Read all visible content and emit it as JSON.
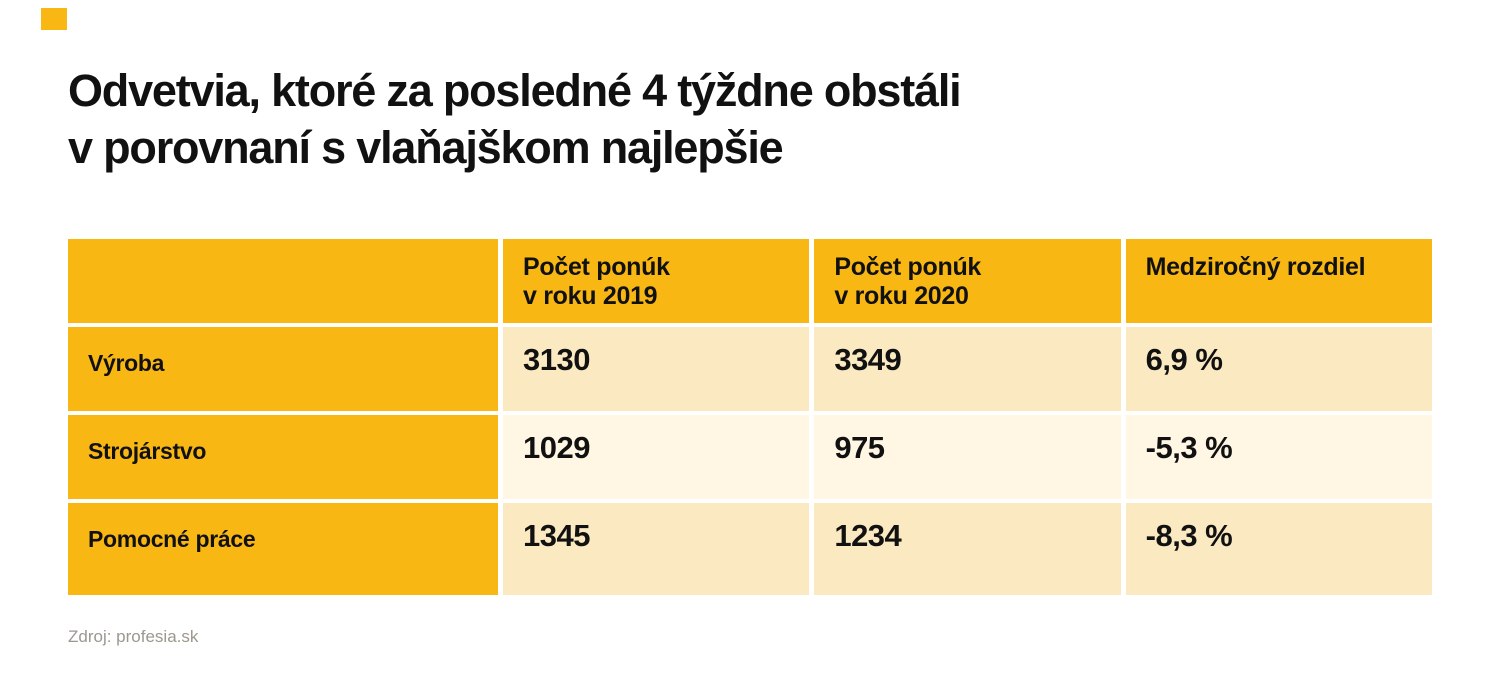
{
  "colors": {
    "yellow": "#F8B713",
    "cream_a": "#FBE9C1",
    "cream_b": "#FFF6E3",
    "ink": "#111111",
    "muted": "#9C978F"
  },
  "title": {
    "line1": "Odvetvia, ktoré za posledné 4 týždne obstáli",
    "line2": "v porovnaní s vlaňajškom najlepšie"
  },
  "table": {
    "headers": [
      {
        "line1": "",
        "line2": ""
      },
      {
        "line1": "Počet ponúk",
        "line2": "v roku 2019"
      },
      {
        "line1": "Počet ponúk",
        "line2": "v roku 2020"
      },
      {
        "line1": "Medziročný rozdiel",
        "line2": ""
      }
    ]
  },
  "chart_data": {
    "type": "table",
    "title": "Odvetvia, ktoré za posledné 4 týždne obstáli v porovnaní s vlaňajškom najlepšie",
    "columns": [
      "",
      "Počet ponúk v roku 2019",
      "Počet ponúk v roku 2020",
      "Medziročný rozdiel"
    ],
    "rows": [
      [
        "Výroba",
        "3130",
        "3349",
        "6,9 %"
      ],
      [
        "Strojárstvo",
        "1029",
        "975",
        "-5,3 %"
      ],
      [
        "Pomocné práce",
        "1345",
        "1234",
        "-8,3 %"
      ]
    ],
    "source": "Zdroj: profesia.sk"
  },
  "footer": {
    "source": "Zdroj: profesia.sk"
  }
}
